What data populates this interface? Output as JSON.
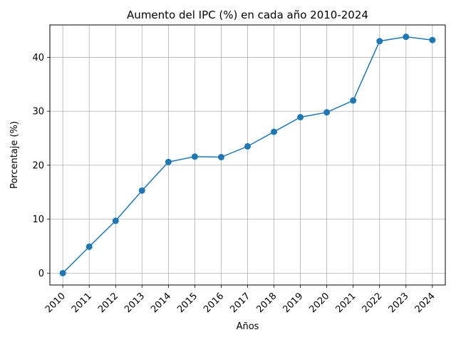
{
  "chart_data": {
    "type": "line",
    "title": "Aumento del IPC (%) en cada año 2010-2024",
    "xlabel": "Años",
    "ylabel": "Porcentaje (%)",
    "categories": [
      "2010",
      "2011",
      "2012",
      "2013",
      "2014",
      "2015",
      "2016",
      "2017",
      "2018",
      "2019",
      "2020",
      "2021",
      "2022",
      "2023",
      "2024"
    ],
    "series": [
      {
        "values": [
          0,
          4.9,
          9.7,
          15.3,
          20.6,
          21.6,
          21.5,
          23.5,
          26.2,
          28.9,
          29.8,
          32.0,
          43.0,
          43.8,
          43.2
        ],
        "color": "#1f77b4",
        "marker": "circle"
      }
    ],
    "ylim": [
      -2.2,
      46.0
    ],
    "yticks": [
      0,
      10,
      20,
      30,
      40
    ],
    "grid": true,
    "legend": "none"
  }
}
